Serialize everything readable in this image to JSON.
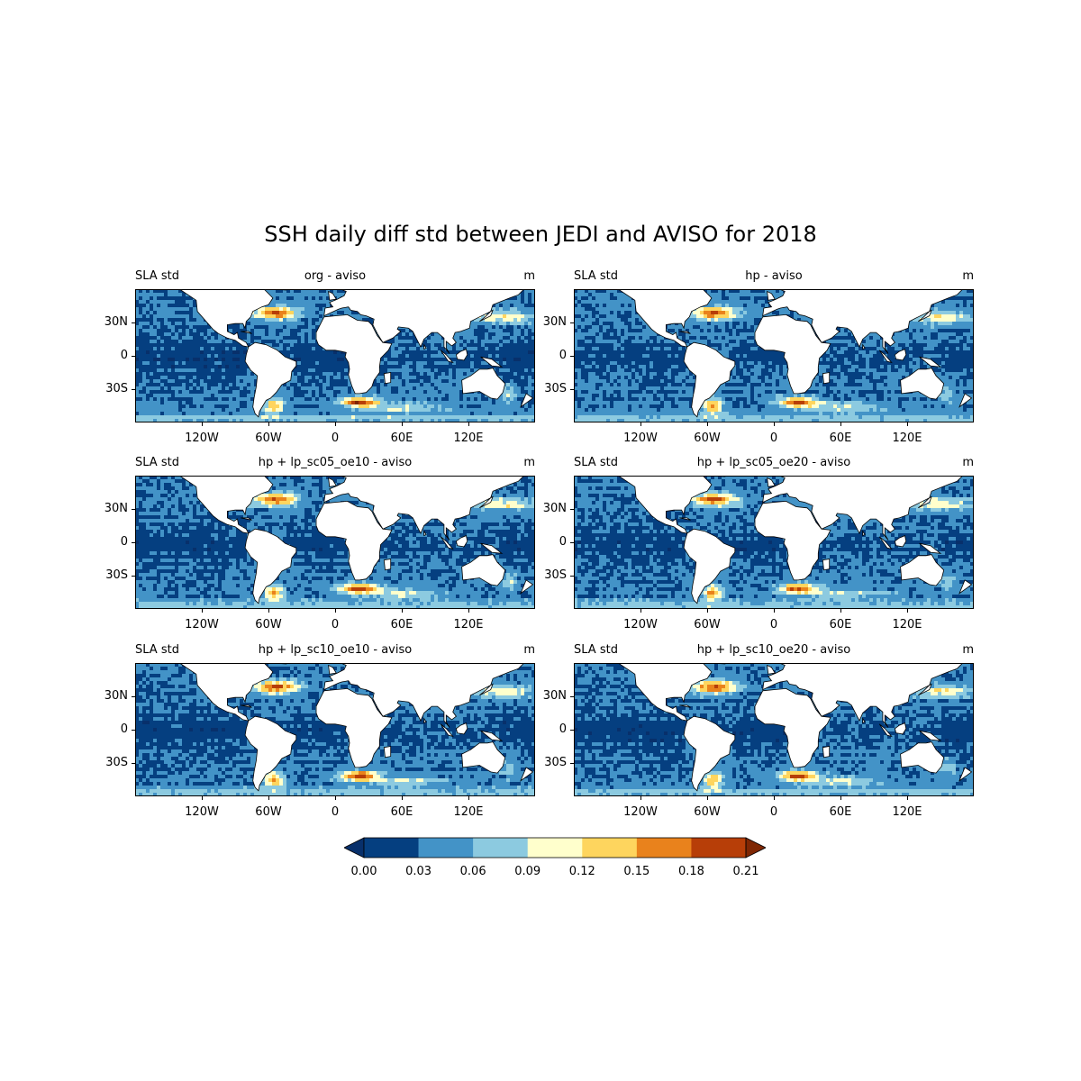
{
  "title": "SSH daily diff std between JEDI and AVISO for 2018",
  "panels": [
    {
      "left": "SLA std",
      "center": "org - aviso",
      "right": "m",
      "variant": 0
    },
    {
      "left": "SLA std",
      "center": "hp - aviso",
      "right": "m",
      "variant": 1
    },
    {
      "left": "SLA std",
      "center": "hp + lp_sc05_oe10 - aviso",
      "right": "m",
      "variant": 2
    },
    {
      "left": "SLA std",
      "center": "hp + lp_sc05_oe20 - aviso",
      "right": "m",
      "variant": 3
    },
    {
      "left": "SLA std",
      "center": "hp + lp_sc10_oe10 - aviso",
      "right": "m",
      "variant": 4
    },
    {
      "left": "SLA std",
      "center": "hp + lp_sc10_oe20 - aviso",
      "right": "m",
      "variant": 5
    }
  ],
  "axes": {
    "lat_ticks": [
      "30N",
      "0",
      "30S"
    ],
    "lon_ticks": [
      "120W",
      "60W",
      "0",
      "60E",
      "120E"
    ]
  },
  "colorbar": {
    "levels": [
      "0.00",
      "0.03",
      "0.06",
      "0.09",
      "0.12",
      "0.15",
      "0.18",
      "0.21"
    ],
    "colors": [
      "#08306b",
      "#053f80",
      "#4393c7",
      "#8ccae0",
      "#ffffcc",
      "#fed55e",
      "#e9821c",
      "#b73e08",
      "#7f2704"
    ],
    "extend": "both"
  },
  "chart_data": {
    "type": "heatmap",
    "title": "SSH daily diff std between JEDI and AVISO for 2018",
    "variable": "SLA std",
    "units": "m",
    "panels": [
      "org - aviso",
      "hp - aviso",
      "hp + lp_sc05_oe10 - aviso",
      "hp + lp_sc05_oe20 - aviso",
      "hp + lp_sc10_oe10 - aviso",
      "hp + lp_sc10_oe20 - aviso"
    ],
    "color_levels": [
      0.0,
      0.03,
      0.06,
      0.09,
      0.12,
      0.15,
      0.18,
      0.21
    ],
    "lon_range": [
      -180,
      180
    ],
    "lat_range": [
      -60,
      60
    ]
  }
}
